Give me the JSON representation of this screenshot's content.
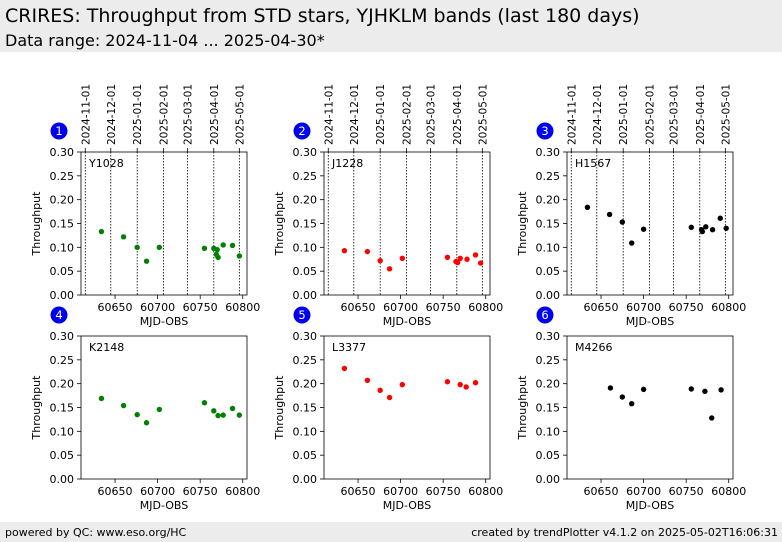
{
  "header": {
    "title": "CRIRES: Throughput from STD stars, YJHKLM bands (last 180 days)",
    "subtitle": "Data range: 2024-11-04 ... 2025-04-30*"
  },
  "footer": {
    "left": "powered by QC: www.eso.org/HC",
    "right": "created by trendPlotter v4.1.2 on 2025-05-02T16:06:31"
  },
  "chart_data": [
    {
      "type": "scatter",
      "panel_number": "1",
      "label": "Y1028",
      "color": "#008000",
      "xlabel": "MJD-OBS",
      "ylabel": "Throughput",
      "xlim": [
        60610,
        60805
      ],
      "ylim": [
        0,
        0.3
      ],
      "xticks": [
        60650,
        60700,
        60750,
        60800
      ],
      "yticks": [
        0.0,
        0.05,
        0.1,
        0.15,
        0.2,
        0.25,
        0.3
      ],
      "date_ticks": [
        "2024-11-01",
        "2024-12-01",
        "2025-01-01",
        "2025-02-01",
        "2025-03-01",
        "2025-04-01",
        "2025-05-01"
      ],
      "date_tick_mjd": [
        60615,
        60645,
        60676,
        60707,
        60735,
        60766,
        60796
      ],
      "x": [
        60634,
        60660,
        60676,
        60687,
        60702,
        60755,
        60766,
        60769,
        60770,
        60771,
        60777,
        60788,
        60796
      ],
      "y": [
        0.133,
        0.122,
        0.1,
        0.071,
        0.1,
        0.098,
        0.098,
        0.085,
        0.095,
        0.079,
        0.105,
        0.104,
        0.082
      ]
    },
    {
      "type": "scatter",
      "panel_number": "2",
      "label": "J1228",
      "color": "#ff0000",
      "xlabel": "MJD-OBS",
      "ylabel": "Throughput",
      "xlim": [
        60610,
        60805
      ],
      "ylim": [
        0,
        0.3
      ],
      "xticks": [
        60650,
        60700,
        60750,
        60800
      ],
      "yticks": [
        0.0,
        0.05,
        0.1,
        0.15,
        0.2,
        0.25,
        0.3
      ],
      "date_ticks": [
        "2024-11-01",
        "2024-12-01",
        "2025-01-01",
        "2025-02-01",
        "2025-03-01",
        "2025-04-01",
        "2025-05-01"
      ],
      "date_tick_mjd": [
        60615,
        60645,
        60676,
        60707,
        60735,
        60766,
        60796
      ],
      "x": [
        60634,
        60661,
        60676,
        60687,
        60702,
        60755,
        60765,
        60767,
        60770,
        60778,
        60788,
        60794
      ],
      "y": [
        0.093,
        0.091,
        0.072,
        0.055,
        0.077,
        0.079,
        0.07,
        0.068,
        0.077,
        0.075,
        0.084,
        0.067
      ]
    },
    {
      "type": "scatter",
      "panel_number": "3",
      "label": "H1567",
      "color": "#000000",
      "xlabel": "MJD-OBS",
      "ylabel": "Throughput",
      "xlim": [
        60610,
        60805
      ],
      "ylim": [
        0,
        0.3
      ],
      "xticks": [
        60650,
        60700,
        60750,
        60800
      ],
      "yticks": [
        0.0,
        0.05,
        0.1,
        0.15,
        0.2,
        0.25,
        0.3
      ],
      "date_ticks": [
        "2024-11-01",
        "2024-12-01",
        "2025-01-01",
        "2025-02-01",
        "2025-03-01",
        "2025-04-01",
        "2025-05-01"
      ],
      "date_tick_mjd": [
        60615,
        60645,
        60676,
        60707,
        60735,
        60766,
        60796
      ],
      "x": [
        60634,
        60660,
        60675,
        60686,
        60700,
        60756,
        60768,
        60769,
        60773,
        60781,
        60790,
        60797
      ],
      "y": [
        0.184,
        0.169,
        0.153,
        0.109,
        0.138,
        0.142,
        0.137,
        0.133,
        0.143,
        0.137,
        0.161,
        0.14
      ]
    },
    {
      "type": "scatter",
      "panel_number": "4",
      "label": "K2148",
      "color": "#008000",
      "xlabel": "MJD-OBS",
      "ylabel": "Throughput",
      "xlim": [
        60610,
        60805
      ],
      "ylim": [
        0,
        0.3
      ],
      "xticks": [
        60650,
        60700,
        60750,
        60800
      ],
      "yticks": [
        0.0,
        0.05,
        0.1,
        0.15,
        0.2,
        0.25,
        0.3
      ],
      "x": [
        60634,
        60660,
        60676,
        60687,
        60702,
        60755,
        60766,
        60771,
        60777,
        60788,
        60796
      ],
      "y": [
        0.169,
        0.154,
        0.135,
        0.118,
        0.146,
        0.16,
        0.143,
        0.133,
        0.134,
        0.148,
        0.134
      ]
    },
    {
      "type": "scatter",
      "panel_number": "5",
      "label": "L3377",
      "color": "#ff0000",
      "xlabel": "MJD-OBS",
      "ylabel": "Throughput",
      "xlim": [
        60610,
        60805
      ],
      "ylim": [
        0,
        0.3
      ],
      "xticks": [
        60650,
        60700,
        60750,
        60800
      ],
      "yticks": [
        0.0,
        0.05,
        0.1,
        0.15,
        0.2,
        0.25,
        0.3
      ],
      "x": [
        60634,
        60661,
        60676,
        60687,
        60702,
        60755,
        60770,
        60777,
        60788
      ],
      "y": [
        0.232,
        0.207,
        0.186,
        0.171,
        0.198,
        0.204,
        0.198,
        0.193,
        0.202
      ]
    },
    {
      "type": "scatter",
      "panel_number": "6",
      "label": "M4266",
      "color": "#000000",
      "xlabel": "MJD-OBS",
      "ylabel": "Throughput",
      "xlim": [
        60610,
        60805
      ],
      "ylim": [
        0,
        0.3
      ],
      "xticks": [
        60650,
        60700,
        60750,
        60800
      ],
      "yticks": [
        0.0,
        0.05,
        0.1,
        0.15,
        0.2,
        0.25,
        0.3
      ],
      "x": [
        60661,
        60675,
        60686,
        60700,
        60756,
        60772,
        60780,
        60791
      ],
      "y": [
        0.191,
        0.172,
        0.158,
        0.188,
        0.189,
        0.184,
        0.128,
        0.187
      ]
    }
  ]
}
